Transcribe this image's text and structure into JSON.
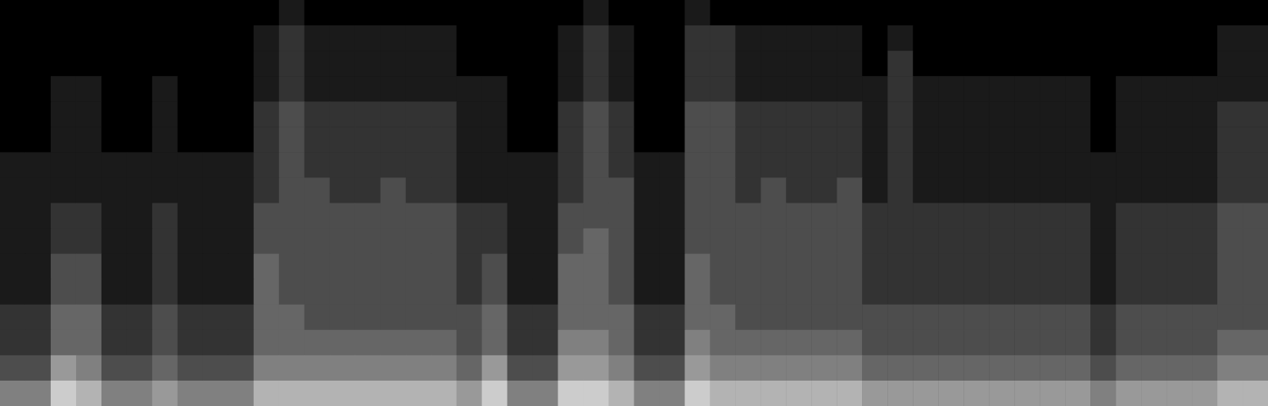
{
  "chart_data": {
    "type": "heatmap",
    "tick_labels": false,
    "zlim": [
      0,
      10
    ],
    "z": [
      [
        0,
        0,
        0,
        0,
        0,
        0,
        0,
        0,
        0,
        0,
        0,
        1,
        0,
        0,
        0,
        0,
        0,
        0,
        0,
        0,
        0,
        0,
        0,
        1,
        0,
        0,
        0,
        1,
        0,
        0,
        0,
        0,
        0,
        0,
        0,
        0,
        0,
        0,
        0,
        0,
        0,
        0,
        0,
        0,
        0,
        0,
        0,
        0,
        0,
        0
      ],
      [
        0,
        0,
        0,
        0,
        0,
        0,
        0,
        0,
        0,
        0,
        1,
        2,
        1,
        1,
        1,
        1,
        1,
        1,
        0,
        0,
        0,
        0,
        1,
        2,
        1,
        0,
        0,
        2,
        2,
        1,
        1,
        1,
        1,
        1,
        0,
        1,
        0,
        0,
        0,
        0,
        0,
        0,
        0,
        0,
        0,
        0,
        0,
        0,
        1,
        1
      ],
      [
        0,
        0,
        0,
        0,
        0,
        0,
        0,
        0,
        0,
        0,
        1,
        2,
        1,
        1,
        1,
        1,
        1,
        1,
        0,
        0,
        0,
        0,
        1,
        2,
        1,
        0,
        0,
        2,
        2,
        1,
        1,
        1,
        1,
        1,
        0,
        2,
        0,
        0,
        0,
        0,
        0,
        0,
        0,
        0,
        0,
        0,
        0,
        0,
        1,
        1
      ],
      [
        0,
        0,
        1,
        1,
        0,
        0,
        1,
        0,
        0,
        0,
        1,
        2,
        1,
        1,
        1,
        1,
        1,
        1,
        1,
        1,
        0,
        0,
        1,
        2,
        1,
        0,
        0,
        2,
        2,
        1,
        1,
        1,
        1,
        1,
        1,
        2,
        1,
        1,
        1,
        1,
        1,
        1,
        1,
        0,
        1,
        1,
        1,
        1,
        1,
        1
      ],
      [
        0,
        0,
        1,
        1,
        0,
        0,
        1,
        0,
        0,
        0,
        2,
        3,
        2,
        2,
        2,
        2,
        2,
        2,
        1,
        1,
        0,
        0,
        2,
        3,
        2,
        0,
        0,
        3,
        3,
        2,
        2,
        2,
        2,
        2,
        1,
        2,
        1,
        1,
        1,
        1,
        1,
        1,
        1,
        0,
        1,
        1,
        1,
        1,
        2,
        2
      ],
      [
        0,
        0,
        1,
        1,
        0,
        0,
        1,
        0,
        0,
        0,
        2,
        3,
        2,
        2,
        2,
        2,
        2,
        2,
        1,
        1,
        0,
        0,
        2,
        3,
        2,
        0,
        0,
        3,
        3,
        2,
        2,
        2,
        2,
        2,
        1,
        2,
        1,
        1,
        1,
        1,
        1,
        1,
        1,
        0,
        1,
        1,
        1,
        1,
        2,
        2
      ],
      [
        1,
        1,
        1,
        1,
        1,
        1,
        1,
        1,
        1,
        1,
        2,
        3,
        2,
        2,
        2,
        2,
        2,
        2,
        1,
        1,
        1,
        1,
        2,
        3,
        2,
        1,
        1,
        3,
        3,
        2,
        2,
        2,
        2,
        2,
        1,
        2,
        1,
        1,
        1,
        1,
        1,
        1,
        1,
        1,
        1,
        1,
        1,
        1,
        2,
        2
      ],
      [
        1,
        1,
        1,
        1,
        1,
        1,
        1,
        1,
        1,
        1,
        2,
        3,
        3,
        2,
        2,
        3,
        2,
        2,
        1,
        1,
        1,
        1,
        2,
        3,
        3,
        1,
        1,
        3,
        3,
        2,
        3,
        2,
        2,
        3,
        1,
        2,
        1,
        1,
        1,
        1,
        1,
        1,
        1,
        1,
        1,
        1,
        1,
        1,
        2,
        2
      ],
      [
        1,
        1,
        2,
        2,
        1,
        1,
        2,
        1,
        1,
        1,
        3,
        3,
        3,
        3,
        3,
        3,
        3,
        3,
        2,
        2,
        1,
        1,
        3,
        3,
        3,
        1,
        1,
        3,
        3,
        3,
        3,
        3,
        3,
        3,
        2,
        2,
        2,
        2,
        2,
        2,
        2,
        2,
        2,
        1,
        2,
        2,
        2,
        2,
        3,
        3
      ],
      [
        1,
        1,
        2,
        2,
        1,
        1,
        2,
        1,
        1,
        1,
        3,
        3,
        3,
        3,
        3,
        3,
        3,
        3,
        2,
        2,
        1,
        1,
        3,
        4,
        3,
        1,
        1,
        3,
        3,
        3,
        3,
        3,
        3,
        3,
        2,
        2,
        2,
        2,
        2,
        2,
        2,
        2,
        2,
        1,
        2,
        2,
        2,
        2,
        3,
        3
      ],
      [
        1,
        1,
        3,
        3,
        1,
        1,
        2,
        1,
        1,
        1,
        4,
        3,
        3,
        3,
        3,
        3,
        3,
        3,
        2,
        3,
        1,
        1,
        4,
        4,
        3,
        1,
        1,
        4,
        3,
        3,
        3,
        3,
        3,
        3,
        2,
        2,
        2,
        2,
        2,
        2,
        2,
        2,
        2,
        1,
        2,
        2,
        2,
        2,
        3,
        3
      ],
      [
        1,
        1,
        3,
        3,
        1,
        1,
        2,
        1,
        1,
        1,
        4,
        3,
        3,
        3,
        3,
        3,
        3,
        3,
        2,
        3,
        1,
        1,
        4,
        4,
        3,
        1,
        1,
        4,
        3,
        3,
        3,
        3,
        3,
        3,
        2,
        2,
        2,
        2,
        2,
        2,
        2,
        2,
        2,
        1,
        2,
        2,
        2,
        2,
        3,
        3
      ],
      [
        2,
        2,
        4,
        4,
        2,
        2,
        3,
        2,
        2,
        2,
        4,
        4,
        3,
        3,
        3,
        3,
        3,
        3,
        3,
        4,
        2,
        2,
        4,
        4,
        4,
        2,
        2,
        4,
        4,
        3,
        3,
        3,
        3,
        3,
        3,
        3,
        3,
        3,
        3,
        3,
        3,
        3,
        3,
        2,
        3,
        3,
        3,
        3,
        3,
        3
      ],
      [
        2,
        2,
        4,
        4,
        2,
        2,
        3,
        2,
        2,
        2,
        4,
        4,
        4,
        4,
        4,
        4,
        4,
        4,
        3,
        4,
        2,
        2,
        5,
        5,
        4,
        2,
        2,
        5,
        4,
        4,
        4,
        4,
        4,
        4,
        3,
        3,
        3,
        3,
        3,
        3,
        3,
        3,
        3,
        2,
        3,
        3,
        3,
        3,
        4,
        4
      ],
      [
        3,
        3,
        6,
        5,
        3,
        3,
        4,
        3,
        3,
        3,
        5,
        5,
        5,
        5,
        5,
        5,
        5,
        5,
        4,
        6,
        3,
        3,
        6,
        6,
        5,
        3,
        3,
        6,
        5,
        5,
        5,
        5,
        5,
        5,
        4,
        4,
        4,
        4,
        4,
        4,
        4,
        4,
        4,
        3,
        4,
        4,
        4,
        4,
        5,
        5
      ],
      [
        5,
        5,
        8,
        7,
        5,
        5,
        6,
        5,
        5,
        5,
        7,
        7,
        7,
        7,
        7,
        7,
        7,
        7,
        6,
        8,
        5,
        5,
        8,
        8,
        7,
        5,
        5,
        8,
        7,
        7,
        7,
        7,
        7,
        7,
        6,
        6,
        6,
        6,
        6,
        6,
        6,
        6,
        6,
        5,
        6,
        6,
        6,
        6,
        7,
        7
      ]
    ]
  }
}
